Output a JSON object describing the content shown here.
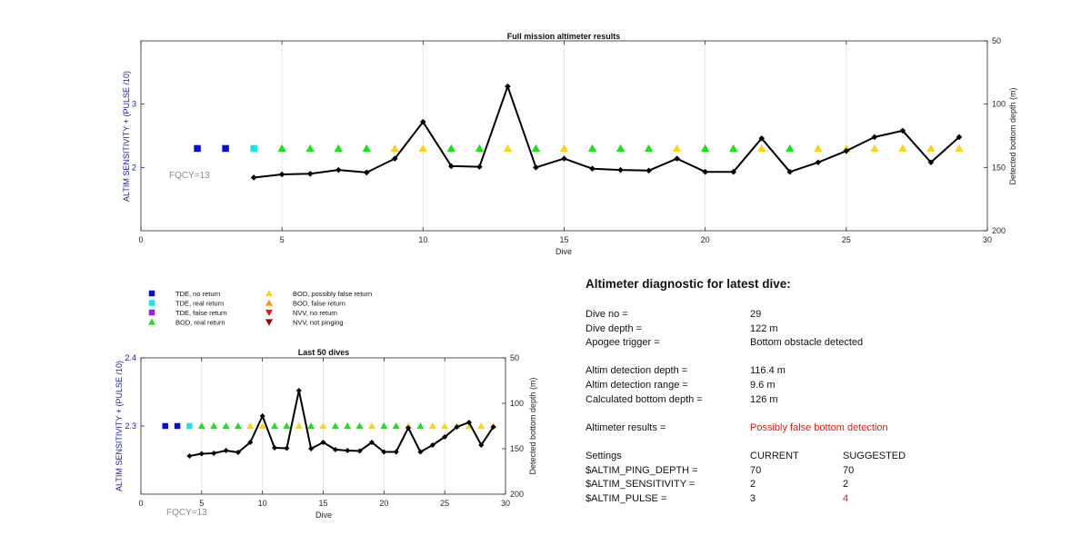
{
  "charts": {
    "top": {
      "title": "Full mission altimeter results",
      "ylabel_left": "ALTIM SENSITIVITY + (PULSE /10)",
      "ylabel_right": "Detected bottom depth (m)",
      "xlabel": "Dive",
      "annotation": "FQCY=13"
    },
    "bottom": {
      "title": "Last 50 dives",
      "ylabel_left": "ALTIM SENSITIVITY + (PULSE /10)",
      "ylabel_right": "Detected bottom depth (m)",
      "xlabel": "Dive",
      "annotation": "FQCY=13"
    }
  },
  "legend": {
    "items": [
      {
        "label": "TDE, no return",
        "marker": "square",
        "color": "#0b10c8"
      },
      {
        "label": "TDE, real return",
        "marker": "square",
        "color": "#1ee3e3"
      },
      {
        "label": "TDE, false return",
        "marker": "square",
        "color": "#8b2be2"
      },
      {
        "label": "BOD, real return",
        "marker": "triangle-up",
        "color": "#1be21b"
      },
      {
        "label": "BOD, possibly false return",
        "marker": "triangle-up",
        "color": "#ffd21a"
      },
      {
        "label": "BOD, false return",
        "marker": "triangle-up",
        "color": "#f59a16"
      },
      {
        "label": "NVV, no return",
        "marker": "triangle-down",
        "color": "#e11a0c"
      },
      {
        "label": "NVV, not pinging",
        "marker": "triangle-down",
        "color": "#8b0c0c"
      }
    ]
  },
  "chart_data": [
    {
      "type": "scatter",
      "title": "Full mission altimeter results",
      "xlabel": "Dive",
      "ylabel": "ALTIM SENSITIVITY + (PULSE /10)",
      "y2label": "Detected bottom depth (m)",
      "xlim": [
        0,
        30
      ],
      "ylim": [
        1,
        4
      ],
      "y2lim": [
        200,
        50
      ],
      "y2_reversed": true,
      "xticks": [
        0,
        5,
        10,
        15,
        20,
        25,
        30
      ],
      "yticks": [
        2,
        3
      ],
      "y2ticks": [
        50,
        100,
        150,
        200
      ],
      "grid": "vertical",
      "annotations": [
        "FQCY=13"
      ],
      "series": [
        {
          "name": "TDE, no return",
          "marker": "square",
          "color": "#0b10c8",
          "x": [
            2,
            3
          ],
          "y": [
            2.3,
            2.3
          ]
        },
        {
          "name": "TDE, real return",
          "marker": "square",
          "color": "#1ee3e3",
          "x": [
            4
          ],
          "y": [
            2.3
          ]
        },
        {
          "name": "BOD, real return",
          "marker": "triangle-up",
          "color": "#1be21b",
          "x": [
            5,
            6,
            7,
            8,
            11,
            12,
            14,
            16,
            17,
            18,
            20,
            21,
            23
          ],
          "y": [
            2.3,
            2.3,
            2.3,
            2.3,
            2.3,
            2.3,
            2.3,
            2.3,
            2.3,
            2.3,
            2.3,
            2.3,
            2.3
          ]
        },
        {
          "name": "BOD, possibly false return",
          "marker": "triangle-up",
          "color": "#ffd21a",
          "x": [
            9,
            10,
            13,
            15,
            19,
            22,
            24,
            25,
            26,
            27,
            28,
            29
          ],
          "y": [
            2.3,
            2.3,
            2.3,
            2.3,
            2.3,
            2.3,
            2.3,
            2.3,
            2.3,
            2.3,
            2.3,
            2.3
          ]
        },
        {
          "name": "Detected bottom depth",
          "axis": "right",
          "marker": "diamond",
          "color": "#000000",
          "x": [
            4,
            5,
            6,
            7,
            8,
            9,
            10,
            11,
            12,
            13,
            14,
            15,
            16,
            17,
            18,
            19,
            20,
            21,
            22,
            23,
            24,
            25,
            26,
            27,
            28,
            29
          ],
          "y": [
            158,
            155.5,
            155,
            152,
            154,
            143,
            114,
            149,
            149.5,
            86,
            150,
            143,
            151,
            152,
            152.5,
            143,
            153.5,
            153.5,
            127,
            153.5,
            146,
            137,
            126,
            121,
            146,
            126
          ]
        }
      ]
    },
    {
      "type": "scatter",
      "title": "Last 50 dives",
      "xlabel": "Dive",
      "ylabel": "ALTIM SENSITIVITY + (PULSE /10)",
      "y2label": "Detected bottom depth (m)",
      "xlim": [
        0,
        30
      ],
      "ylim": [
        2.2,
        2.4
      ],
      "y2lim": [
        200,
        50
      ],
      "y2_reversed": true,
      "xticks": [
        0,
        5,
        10,
        15,
        20,
        25,
        30
      ],
      "yticks": [
        2.3,
        2.4
      ],
      "y2ticks": [
        50,
        100,
        150,
        200
      ],
      "grid": "vertical",
      "annotations": [
        "FQCY=13"
      ],
      "series": [
        {
          "name": "TDE, no return",
          "marker": "square",
          "color": "#0b10c8",
          "x": [
            2,
            3
          ],
          "y": [
            2.3,
            2.3
          ]
        },
        {
          "name": "TDE, real return",
          "marker": "square",
          "color": "#1ee3e3",
          "x": [
            4
          ],
          "y": [
            2.3
          ]
        },
        {
          "name": "BOD, real return",
          "marker": "triangle-up",
          "color": "#1be21b",
          "x": [
            5,
            6,
            7,
            8,
            11,
            12,
            14,
            16,
            17,
            18,
            20,
            21,
            23
          ],
          "y": [
            2.3,
            2.3,
            2.3,
            2.3,
            2.3,
            2.3,
            2.3,
            2.3,
            2.3,
            2.3,
            2.3,
            2.3,
            2.3
          ]
        },
        {
          "name": "BOD, possibly false return",
          "marker": "triangle-up",
          "color": "#ffd21a",
          "x": [
            9,
            10,
            13,
            15,
            19,
            22,
            24,
            25,
            26,
            27,
            28,
            29
          ],
          "y": [
            2.3,
            2.3,
            2.3,
            2.3,
            2.3,
            2.3,
            2.3,
            2.3,
            2.3,
            2.3,
            2.3,
            2.3
          ]
        },
        {
          "name": "Detected bottom depth",
          "axis": "right",
          "marker": "diamond",
          "color": "#000000",
          "x": [
            4,
            5,
            6,
            7,
            8,
            9,
            10,
            11,
            12,
            13,
            14,
            15,
            16,
            17,
            18,
            19,
            20,
            21,
            22,
            23,
            24,
            25,
            26,
            27,
            28,
            29
          ],
          "y": [
            158,
            155.5,
            155,
            152,
            154,
            143,
            114,
            149,
            149.5,
            86,
            150,
            143,
            151,
            152,
            152.5,
            143,
            153.5,
            153.5,
            127,
            153.5,
            146,
            137,
            126,
            121,
            146,
            126
          ]
        }
      ]
    }
  ],
  "diagnostic": {
    "title": "Altimeter diagnostic for latest dive:",
    "dive_no_label": "Dive no =",
    "dive_no_value": "29",
    "dive_depth_label": "Dive depth =",
    "dive_depth_value": "122 m",
    "apogee_label": "Apogee trigger =",
    "apogee_value": "Bottom obstacle detected",
    "altim_det_depth_label": "Altim detection depth =",
    "altim_det_depth_value": "116.4 m",
    "altim_det_range_label": "Altim detection range =",
    "altim_det_range_value": "9.6 m",
    "calc_bottom_label": "Calculated bottom depth =",
    "calc_bottom_value": "126 m",
    "results_label": "Altimeter results =",
    "results_value": "Possibly false bottom detection",
    "settings_label": "Settings",
    "current_header": "CURRENT",
    "suggested_header": "SUGGESTED",
    "settings": [
      {
        "name": "$ALTIM_PING_DEPTH =",
        "current": "70",
        "suggested": "70"
      },
      {
        "name": "$ALTIM_SENSITIVITY =",
        "current": "2",
        "suggested": "2"
      },
      {
        "name": "$ALTIM_PULSE =",
        "current": "3",
        "suggested": "4"
      }
    ],
    "colors": {
      "warning": "#d91f16",
      "axis_label_left": "#1a1aaa",
      "annotation": "#8c8c8c"
    }
  }
}
